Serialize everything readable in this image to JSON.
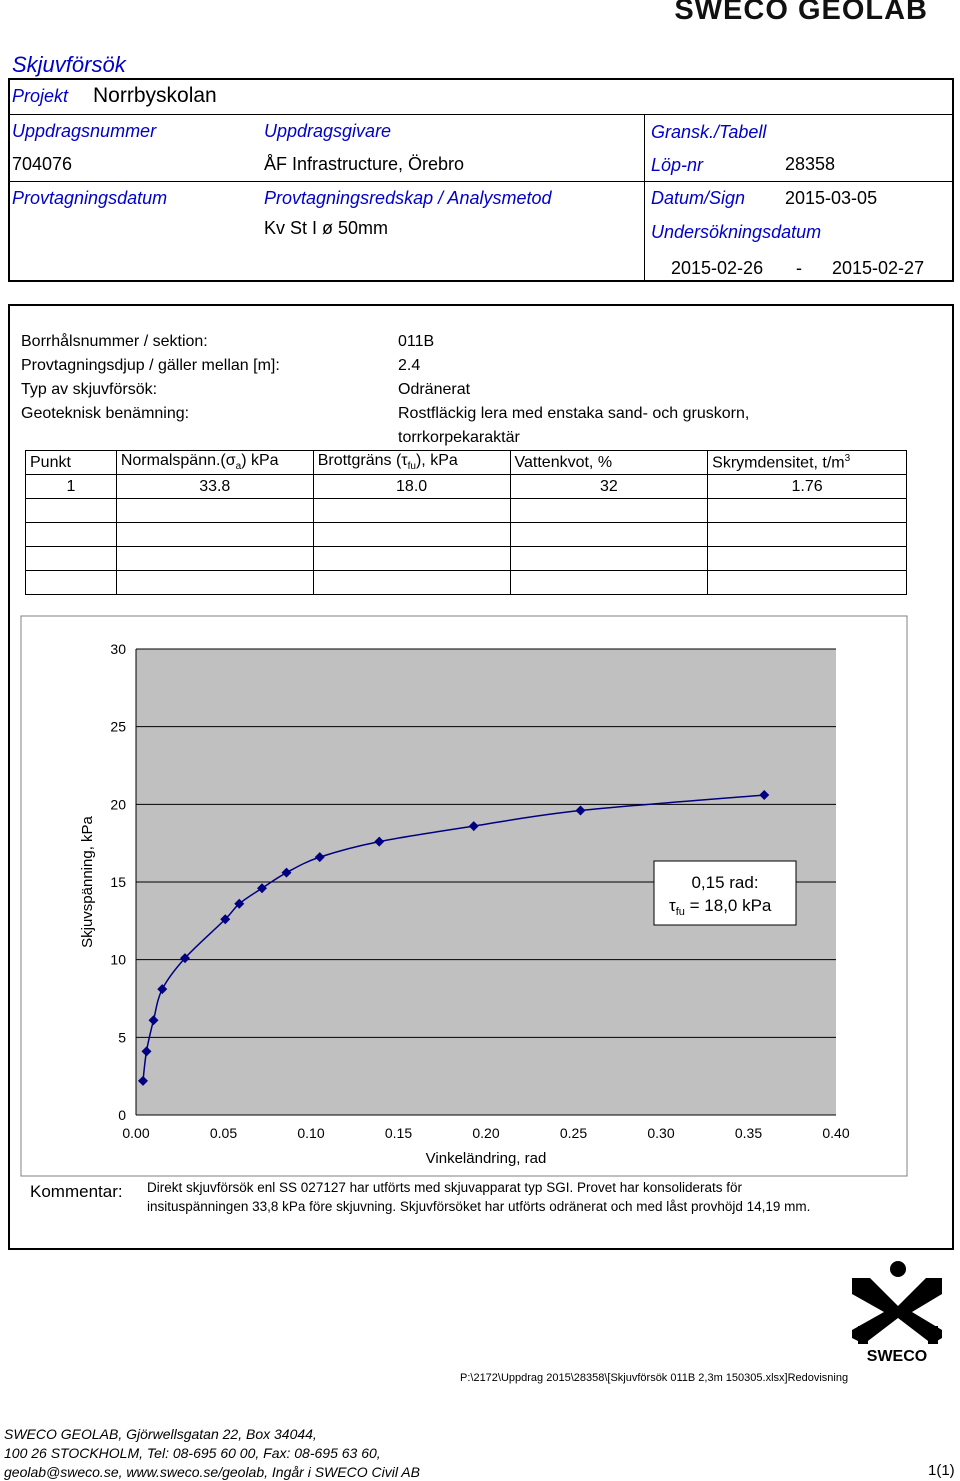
{
  "brand": "SWECO GEOLAB",
  "doc_title": "Skjuvförsök",
  "header": {
    "projekt_label": "Projekt",
    "projekt_value": "Norrbyskolan",
    "uppdragsnummer_label": "Uppdragsnummer",
    "uppdragsnummer_value": "704076",
    "uppdragsgivare_label": "Uppdragsgivare",
    "uppdragsgivare_value": "ÅF Infrastructure, Örebro",
    "gransk_label": "Gransk./Tabell",
    "lopnr_label": "Löp-nr",
    "lopnr_value": "28358",
    "provtagningsdatum_label": "Provtagningsdatum",
    "redskap_label": "Provtagningsredskap / Analysmetod",
    "redskap_value": "Kv St I ø 50mm",
    "datum_sign_label": "Datum/Sign",
    "datum_sign_value": "2015-03-05",
    "undersokning_label": "Undersökningsdatum",
    "undersokning_from": "2015-02-26",
    "undersokning_dash": "-",
    "undersokning_to": "2015-02-27"
  },
  "sample": {
    "borrhal_label": "Borrhålsnummer / sektion:",
    "borrhal_value": "011B",
    "djup_label": "Provtagningsdjup / gäller mellan [m]:",
    "djup_value": "2.4",
    "typ_label": "Typ av skjuvförsök:",
    "typ_value": "Odränerat",
    "benamning_label": "Geoteknisk benämning:",
    "benamning_value_1": "Rostfläckig lera med enstaka sand- och gruskorn,",
    "benamning_value_2": "torrkorpekaraktär"
  },
  "table": {
    "col_punkt": "Punkt",
    "col_normal_pre": "Normalspänn.(",
    "col_normal_sym": "σ",
    "col_normal_sub": "a",
    "col_normal_post": ") kPa",
    "col_brott_pre": "Brottgräns (",
    "col_brott_sym": "τ",
    "col_brott_sub": "fu",
    "col_brott_post": "), kPa",
    "col_vatten": "Vattenkvot, %",
    "col_skrym": "Skrymdensitet, t/m",
    "col_skrym_sup": "3",
    "row1": {
      "punkt": "1",
      "normal": "33.8",
      "brott": "18.0",
      "vatten": "32",
      "skrym": "1.76"
    }
  },
  "chart_data": {
    "type": "scatter",
    "xlabel": "Vinkeländring, rad",
    "ylabel": "Skjuvspänning, kPa",
    "xlim": [
      0,
      0.4
    ],
    "ylim": [
      0,
      30
    ],
    "x_ticks": [
      "0.00",
      "0.05",
      "0.10",
      "0.15",
      "0.20",
      "0.25",
      "0.30",
      "0.35",
      "0.40"
    ],
    "y_ticks": [
      "0",
      "5",
      "10",
      "15",
      "20",
      "25",
      "30"
    ],
    "points": [
      {
        "x": 0.004,
        "y": 2.2
      },
      {
        "x": 0.006,
        "y": 4.1
      },
      {
        "x": 0.01,
        "y": 6.1
      },
      {
        "x": 0.015,
        "y": 8.1
      },
      {
        "x": 0.028,
        "y": 10.1
      },
      {
        "x": 0.051,
        "y": 12.6
      },
      {
        "x": 0.059,
        "y": 13.6
      },
      {
        "x": 0.072,
        "y": 14.6
      },
      {
        "x": 0.086,
        "y": 15.6
      },
      {
        "x": 0.105,
        "y": 16.6
      },
      {
        "x": 0.139,
        "y": 17.6
      },
      {
        "x": 0.193,
        "y": 18.6
      },
      {
        "x": 0.254,
        "y": 19.6
      },
      {
        "x": 0.359,
        "y": 20.6
      }
    ],
    "annotation_1": "0,15 rad:",
    "annotation_sym": "τ",
    "annotation_sub": "fu",
    "annotation_2": " = 18,0 kPa",
    "colors": {
      "plot_bg": "#c0c0c0",
      "series": "#000080",
      "frame_bg": "#ffffff"
    }
  },
  "kommentar": {
    "label": "Kommentar:",
    "line1": "Direkt skjuvförsök enl SS 027127 har utförts med skjuvapparat typ SGI. Provet har konsoliderats för",
    "line2": "insituspänningen 33,8 kPa före skjuvning. Skjuvförsöket har utförts odränerat och med låst provhöjd 14,19 mm."
  },
  "logo_text": "SWECO",
  "file_path": "P:\\2172\\Uppdrag 2015\\28358\\[Skjuvförsök 011B 2,3m 150305.xlsx]Redovisning",
  "footer": {
    "line1": "SWECO GEOLAB, Gjörwellsgatan 22, Box 34044,",
    "line2": "100 26  STOCKHOLM, Tel: 08-695 60 00, Fax: 08-695 63 60,",
    "line3": "geolab@sweco.se, www.sweco.se/geolab, Ingår i SWECO Civil AB",
    "page": "1(1)"
  }
}
